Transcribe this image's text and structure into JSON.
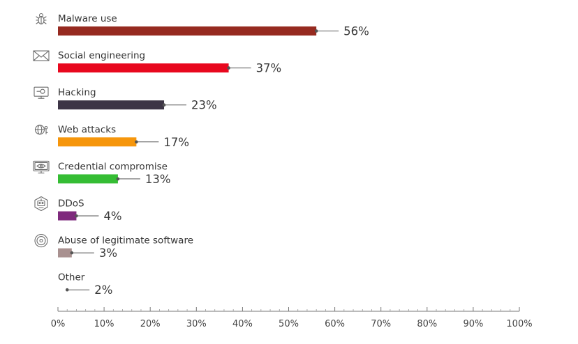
{
  "chart_data": {
    "type": "bar",
    "orientation": "horizontal",
    "categories": [
      "Malware use",
      "Social engineering",
      "Hacking",
      "Web attacks",
      "Credential compromise",
      "DDoS",
      "Abuse of legitimate software",
      "Other"
    ],
    "values": [
      56,
      37,
      23,
      17,
      13,
      4,
      3,
      2
    ],
    "value_labels": [
      "56%",
      "37%",
      "23%",
      "17%",
      "13%",
      "4%",
      "3%",
      "2%"
    ],
    "colors": [
      "#962a20",
      "#e8081e",
      "#3d3546",
      "#f6960c",
      "#35bd34",
      "#7f2a7d",
      "#a99190",
      "#ffffff"
    ],
    "icons": [
      "bug-icon",
      "envelope-icon",
      "monitor-hacking-icon",
      "globe-key-icon",
      "monitor-eye-icon",
      "robot-icon",
      "disc-icon",
      ""
    ],
    "xlim": [
      0,
      100
    ],
    "xticks": [
      0,
      10,
      20,
      30,
      40,
      50,
      60,
      70,
      80,
      90,
      100
    ],
    "xtick_labels": [
      "0%",
      "10%",
      "20%",
      "30%",
      "40%",
      "50%",
      "60%",
      "70%",
      "80%",
      "90%",
      "100%"
    ],
    "grid": false,
    "title": "",
    "xlabel": "",
    "ylabel": ""
  }
}
